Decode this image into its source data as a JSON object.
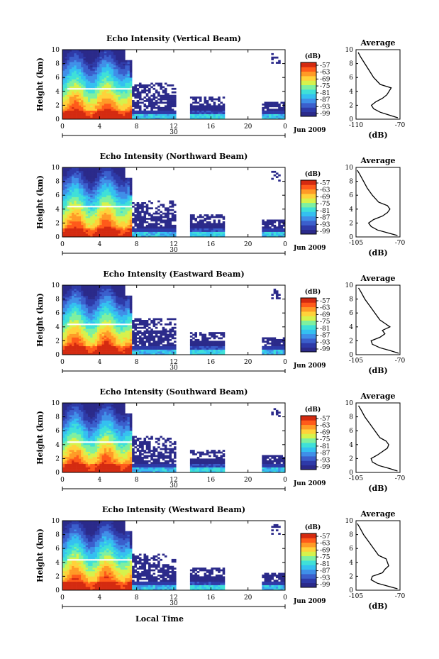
{
  "chart_data": [
    {
      "type": "heatmap",
      "title": "Echo Intensity (Vertical Beam)",
      "ylabel": "Height (km)",
      "x_ticks": [
        "0",
        "4",
        "8",
        "12",
        "16",
        "20",
        "0"
      ],
      "day_label": "30",
      "month_label": "Jun 2009",
      "y_ticks": [
        "0",
        "2",
        "4",
        "6",
        "8",
        "10"
      ],
      "xlim": [
        0,
        24
      ],
      "ylim": [
        0,
        10
      ],
      "colorbar": {
        "label": "(dB)",
        "ticks": [
          "-57",
          "-63",
          "-69",
          "-75",
          "-81",
          "-87",
          "-93",
          "-99"
        ]
      },
      "profile": {
        "title": "Average",
        "xlabel": "(dB)",
        "x_ticks": [
          "-110",
          "-70"
        ],
        "xlim": [
          -110,
          -70
        ],
        "y_ticks": [
          "0",
          "2",
          "4",
          "6",
          "8",
          "10"
        ],
        "heights": [
          0.2,
          0.6,
          1.0,
          1.5,
          2.0,
          2.5,
          3.0,
          3.5,
          4.0,
          4.5,
          5.0,
          6.0,
          7.0,
          8.0,
          9.0,
          9.6
        ],
        "values": [
          -72,
          -80,
          -88,
          -94,
          -96,
          -92,
          -86,
          -82,
          -80,
          -78,
          -88,
          -94,
          -98,
          -102,
          -106,
          -108
        ]
      }
    },
    {
      "type": "heatmap",
      "title": "Echo Intensity (Northward Beam)",
      "ylabel": "Height (km)",
      "x_ticks": [
        "0",
        "4",
        "8",
        "12",
        "16",
        "20",
        "0"
      ],
      "day_label": "30",
      "month_label": "Jun 2009",
      "y_ticks": [
        "0",
        "2",
        "4",
        "6",
        "8",
        "10"
      ],
      "xlim": [
        0,
        24
      ],
      "ylim": [
        0,
        10
      ],
      "colorbar": {
        "label": "(dB)",
        "ticks": [
          "-57",
          "-63",
          "-69",
          "-75",
          "-81",
          "-87",
          "-93",
          "-99"
        ]
      },
      "profile": {
        "title": "Average",
        "xlabel": "(dB)",
        "x_ticks": [
          "-105",
          "-70"
        ],
        "xlim": [
          -105,
          -70
        ],
        "y_ticks": [
          "0",
          "2",
          "4",
          "6",
          "8",
          "10"
        ],
        "heights": [
          0.2,
          0.6,
          1.0,
          1.5,
          2.0,
          2.5,
          3.0,
          3.5,
          4.0,
          4.5,
          5.0,
          6.0,
          7.0,
          8.0,
          9.0,
          9.6
        ],
        "values": [
          -72,
          -80,
          -88,
          -93,
          -95,
          -91,
          -84,
          -80,
          -78,
          -80,
          -87,
          -92,
          -96,
          -99,
          -102,
          -104
        ]
      }
    },
    {
      "type": "heatmap",
      "title": "Echo Intensity (Eastward Beam)",
      "ylabel": "Height (km)",
      "x_ticks": [
        "0",
        "4",
        "8",
        "12",
        "16",
        "20",
        "0"
      ],
      "day_label": "30",
      "month_label": "Jun 2009",
      "y_ticks": [
        "0",
        "2",
        "4",
        "6",
        "8",
        "10"
      ],
      "xlim": [
        0,
        24
      ],
      "ylim": [
        0,
        10
      ],
      "colorbar": {
        "label": "(dB)",
        "ticks": [
          "-57",
          "-63",
          "-69",
          "-75",
          "-81",
          "-87",
          "-93",
          "-99"
        ]
      },
      "profile": {
        "title": "Average",
        "xlabel": "(dB)",
        "x_ticks": [
          "-105",
          "-70"
        ],
        "xlim": [
          -105,
          -70
        ],
        "y_ticks": [
          "0",
          "2",
          "4",
          "6",
          "8",
          "10"
        ],
        "heights": [
          0.2,
          0.6,
          1.0,
          1.5,
          2.0,
          2.5,
          3.0,
          3.5,
          4.0,
          4.5,
          5.0,
          6.0,
          7.0,
          8.0,
          9.0,
          9.6
        ],
        "values": [
          -71,
          -78,
          -86,
          -92,
          -93,
          -86,
          -82,
          -84,
          -78,
          -82,
          -86,
          -90,
          -94,
          -98,
          -101,
          -103
        ]
      }
    },
    {
      "type": "heatmap",
      "title": "Echo Intensity (Southward Beam)",
      "ylabel": "Height (km)",
      "x_ticks": [
        "0",
        "4",
        "8",
        "12",
        "16",
        "20",
        "0"
      ],
      "day_label": "30",
      "month_label": "Jun 2009",
      "y_ticks": [
        "0",
        "2",
        "4",
        "6",
        "8",
        "10"
      ],
      "xlim": [
        0,
        24
      ],
      "ylim": [
        0,
        10
      ],
      "colorbar": {
        "label": "(dB)",
        "ticks": [
          "-57",
          "-63",
          "-69",
          "-75",
          "-81",
          "-87",
          "-93",
          "-99"
        ]
      },
      "profile": {
        "title": "Average",
        "xlabel": "(dB)",
        "x_ticks": [
          "-105",
          "-70"
        ],
        "xlim": [
          -105,
          -70
        ],
        "y_ticks": [
          "0",
          "2",
          "4",
          "6",
          "8",
          "10"
        ],
        "heights": [
          0.2,
          0.6,
          1.0,
          1.5,
          2.0,
          2.5,
          3.0,
          3.5,
          4.0,
          4.5,
          5.0,
          6.0,
          7.0,
          8.0,
          9.0,
          9.6
        ],
        "values": [
          -72,
          -79,
          -87,
          -92,
          -93,
          -88,
          -84,
          -80,
          -79,
          -81,
          -86,
          -90,
          -94,
          -98,
          -101,
          -103
        ]
      }
    },
    {
      "type": "heatmap",
      "title": "Echo Intensity (Westward Beam)",
      "ylabel": "Height (km)",
      "xlabel": "Local Time",
      "x_ticks": [
        "0",
        "4",
        "8",
        "12",
        "16",
        "20",
        "0"
      ],
      "day_label": "30",
      "month_label": "Jun 2009",
      "y_ticks": [
        "0",
        "2",
        "4",
        "6",
        "8",
        "10"
      ],
      "xlim": [
        0,
        24
      ],
      "ylim": [
        0,
        10
      ],
      "colorbar": {
        "label": "(dB)",
        "ticks": [
          "-57",
          "-63",
          "-69",
          "-75",
          "-81",
          "-87",
          "-93",
          "-99"
        ]
      },
      "profile": {
        "title": "Average",
        "xlabel": "(dB)",
        "x_ticks": [
          "-105",
          "-70"
        ],
        "xlim": [
          -105,
          -70
        ],
        "y_ticks": [
          "0",
          "2",
          "4",
          "6",
          "8",
          "10"
        ],
        "heights": [
          0.2,
          0.6,
          1.0,
          1.5,
          2.0,
          2.5,
          3.0,
          3.5,
          4.0,
          4.5,
          5.0,
          6.0,
          7.0,
          8.0,
          9.0,
          9.6
        ],
        "values": [
          -72,
          -80,
          -88,
          -93,
          -92,
          -84,
          -82,
          -79,
          -80,
          -81,
          -87,
          -91,
          -95,
          -99,
          -102,
          -104
        ]
      }
    }
  ],
  "colors": {
    "colormap": [
      "#2b2a8a",
      "#2e3aa8",
      "#3b5fcc",
      "#3f8fe8",
      "#34c0f0",
      "#3fe0d8",
      "#7ef0a0",
      "#d6f24c",
      "#ffd23a",
      "#ff9a26",
      "#ff5a1a",
      "#d42a10"
    ],
    "axis": "#000000"
  }
}
